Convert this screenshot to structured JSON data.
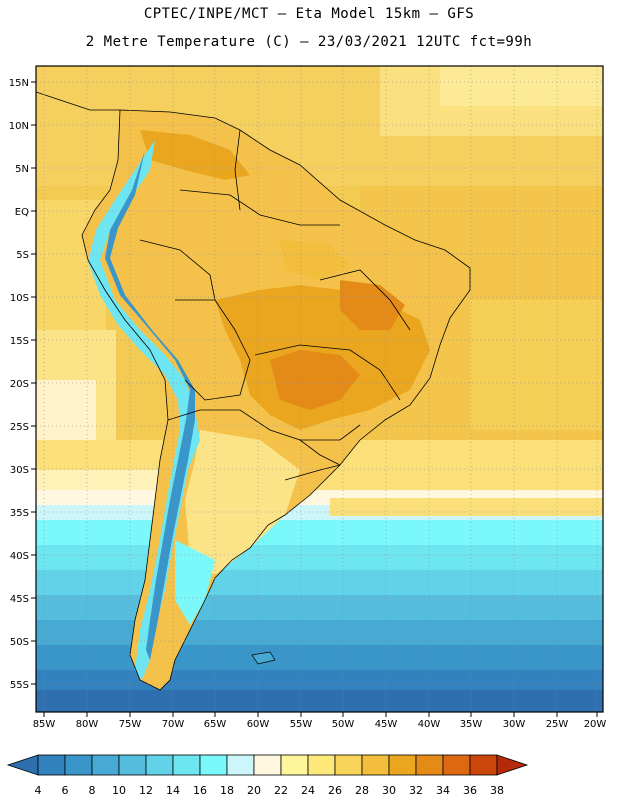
{
  "header": {
    "line1": "CPTEC/INPE/MCT —  Eta Model 15km — GFS",
    "line2": "2 Metre Temperature (C) — 23/03/2021 12UTC fct=99h"
  },
  "map": {
    "lat_labels": [
      "15N",
      "10N",
      "5N",
      "EQ",
      "5S",
      "10S",
      "15S",
      "20S",
      "25S",
      "30S",
      "35S",
      "40S",
      "45S",
      "50S",
      "55S"
    ],
    "lon_labels": [
      "85W",
      "80W",
      "75W",
      "70W",
      "65W",
      "60W",
      "55W",
      "50W",
      "45W",
      "40W",
      "35W",
      "30W",
      "25W",
      "20W"
    ]
  },
  "colorbar": {
    "labels": [
      "4",
      "6",
      "8",
      "10",
      "12",
      "14",
      "16",
      "18",
      "20",
      "22",
      "24",
      "26",
      "28",
      "30",
      "32",
      "34",
      "36",
      "38"
    ],
    "colors": [
      "#2e6fb0",
      "#3282bf",
      "#3a96c9",
      "#46aad4",
      "#55bedf",
      "#62d2e8",
      "#6ee6f2",
      "#7af8fa",
      "#cdf6fb",
      "#fff7df",
      "#fff59a",
      "#fde87a",
      "#f9d45a",
      "#f2be3b",
      "#eaa61f",
      "#e48a16",
      "#dc6811",
      "#cb460b",
      "#b52a09"
    ]
  }
}
